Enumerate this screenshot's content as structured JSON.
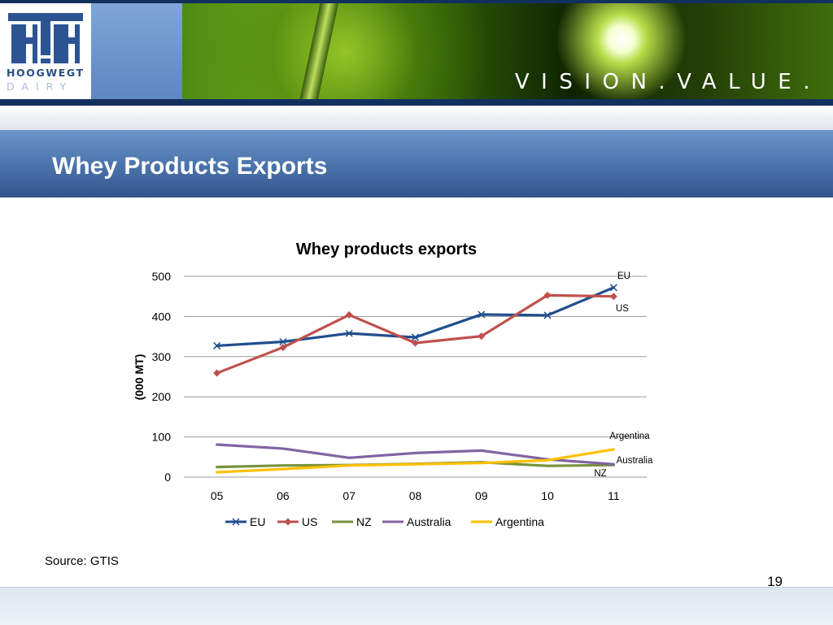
{
  "header": {
    "logo_line1": "HOOGWEGT",
    "logo_line2": "DAIRY",
    "tagline": "VISION.VALUE.",
    "colors": {
      "navy": "#12305e",
      "logo_blue": "#274d86",
      "title_bar": "#4f78b0"
    }
  },
  "slide": {
    "title": "Whey Products Exports",
    "source": "Source: GTIS",
    "page_number": "19"
  },
  "chart_data": {
    "type": "line",
    "title": "Whey products exports",
    "xlabel": "",
    "ylabel": "(000 MT)",
    "categories": [
      "05",
      "06",
      "07",
      "08",
      "09",
      "10",
      "11"
    ],
    "ylim": [
      0,
      500
    ],
    "yticks": [
      0,
      100,
      200,
      300,
      400,
      500
    ],
    "grid": true,
    "legend_position": "bottom",
    "series": [
      {
        "name": "EU",
        "values": [
          327,
          337,
          358,
          348,
          405,
          403,
          472
        ],
        "color": "#1f4e8c",
        "marker": "x",
        "end_label": "EU"
      },
      {
        "name": "US",
        "values": [
          259,
          323,
          404,
          334,
          351,
          453,
          450
        ],
        "color": "#c0504d",
        "marker": "diamond",
        "end_label": "US"
      },
      {
        "name": "NZ",
        "values": [
          25,
          29,
          30,
          33,
          37,
          28,
          30
        ],
        "color": "#77933c",
        "marker": "none",
        "end_label": "NZ"
      },
      {
        "name": "Australia",
        "values": [
          81,
          71,
          48,
          60,
          66,
          44,
          32
        ],
        "color": "#8064a2",
        "marker": "none",
        "end_label": "Australia"
      },
      {
        "name": "Argentina",
        "values": [
          12,
          20,
          29,
          32,
          35,
          42,
          69
        ],
        "color": "#ffc000",
        "marker": "none",
        "end_label": "Argentina"
      }
    ]
  }
}
